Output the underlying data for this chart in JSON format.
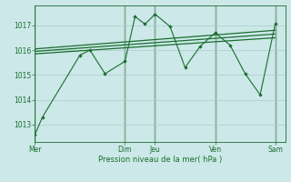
{
  "bg_color": "#cce8e8",
  "grid_color": "#aacccc",
  "line_color": "#1a6e2e",
  "xlabel": "Pression niveau de la mer( hPa )",
  "ylim": [
    1012.3,
    1017.8
  ],
  "yticks": [
    1013,
    1014,
    1015,
    1016,
    1017
  ],
  "day_labels": [
    "Mer",
    "Dim",
    "Jeu",
    "Ven",
    "Sam"
  ],
  "day_positions": [
    0,
    36,
    48,
    72,
    96
  ],
  "xlim": [
    0,
    100
  ],
  "jagged_x": [
    0,
    3,
    18,
    22,
    28,
    36,
    40,
    44,
    48,
    54,
    60,
    66,
    72,
    78,
    84,
    90,
    96
  ],
  "jagged_y": [
    1012.6,
    1013.3,
    1015.8,
    1016.0,
    1015.05,
    1015.55,
    1017.35,
    1017.05,
    1017.45,
    1016.95,
    1015.3,
    1016.15,
    1016.7,
    1016.2,
    1015.05,
    1014.2,
    1017.05
  ],
  "trend_lines": [
    {
      "x": [
        0,
        96
      ],
      "y": [
        1015.85,
        1016.5
      ]
    },
    {
      "x": [
        0,
        96
      ],
      "y": [
        1015.95,
        1016.65
      ]
    },
    {
      "x": [
        0,
        96
      ],
      "y": [
        1016.05,
        1016.8
      ]
    }
  ],
  "sep_lines_x": [
    0,
    36,
    48,
    72,
    96
  ]
}
